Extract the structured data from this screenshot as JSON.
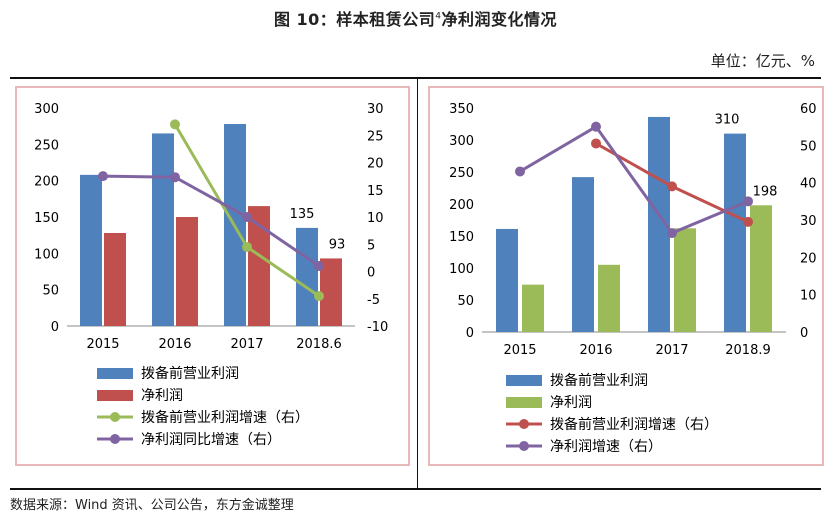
{
  "header": {
    "title": "图 10：样本租赁公司",
    "title_sup": "4",
    "title_tail": "净利润变化情况",
    "unit": "单位：亿元、%"
  },
  "footer": {
    "source": "数据来源：Wind 资讯、公司公告，东方金诚整理"
  },
  "colors": {
    "blue": "#4F81BD",
    "red": "#C0504D",
    "green": "#9BBB59",
    "purple": "#8064A2",
    "frame": "#E6B9B8"
  },
  "chart_data": [
    {
      "type": "bar",
      "categories": [
        "2015",
        "2016",
        "2017",
        "2018.6"
      ],
      "series": [
        {
          "name": "拨备前营业利润",
          "kind": "bar",
          "axis": "left",
          "color": "#4F81BD",
          "values": [
            208,
            265,
            278,
            135
          ]
        },
        {
          "name": "净利润",
          "kind": "bar",
          "axis": "left",
          "color": "#C0504D",
          "values": [
            128,
            150,
            165,
            93
          ]
        },
        {
          "name": "拨备前营业利润增速（右）",
          "kind": "line",
          "axis": "right",
          "color": "#9BBB59",
          "values": [
            null,
            27,
            4.5,
            -4.5
          ]
        },
        {
          "name": "净利润同比增速（右）",
          "kind": "line",
          "axis": "right",
          "color": "#8064A2",
          "values": [
            17.5,
            17.3,
            10,
            1
          ]
        }
      ],
      "data_labels": [
        {
          "series": 0,
          "index": 3,
          "text": "135"
        },
        {
          "series": 1,
          "index": 3,
          "text": "93"
        }
      ],
      "ylim": [
        0,
        300
      ],
      "yticks": [
        "0",
        "50",
        "100",
        "150",
        "200",
        "250",
        "300"
      ],
      "y2lim": [
        -10,
        30
      ],
      "y2ticks": [
        "-10",
        "-5",
        "0",
        "5",
        "10",
        "15",
        "20",
        "25",
        "30"
      ],
      "legend": "bottom"
    },
    {
      "type": "bar",
      "categories": [
        "2015",
        "2016",
        "2017",
        "2018.9"
      ],
      "series": [
        {
          "name": "拨备前营业利润",
          "kind": "bar",
          "axis": "left",
          "color": "#4F81BD",
          "values": [
            161,
            242,
            336,
            310
          ]
        },
        {
          "name": "净利润",
          "kind": "bar",
          "axis": "left",
          "color": "#9BBB59",
          "values": [
            74,
            105,
            162,
            198
          ]
        },
        {
          "name": "拨备前营业利润增速（右）",
          "kind": "line",
          "axis": "right",
          "color": "#C0504D",
          "values": [
            null,
            50.5,
            39,
            29.5
          ]
        },
        {
          "name": "净利润增速（右）",
          "kind": "line",
          "axis": "right",
          "color": "#8064A2",
          "values": [
            43,
            55,
            26.5,
            35
          ]
        }
      ],
      "data_labels": [
        {
          "series": 0,
          "index": 3,
          "text": "310"
        },
        {
          "series": 1,
          "index": 3,
          "text": "198"
        }
      ],
      "ylim": [
        0,
        350
      ],
      "yticks": [
        "0",
        "50",
        "100",
        "150",
        "200",
        "250",
        "300",
        "350"
      ],
      "y2lim": [
        0,
        60
      ],
      "y2ticks": [
        "0",
        "10",
        "20",
        "30",
        "40",
        "50",
        "60"
      ],
      "legend": "bottom"
    }
  ]
}
